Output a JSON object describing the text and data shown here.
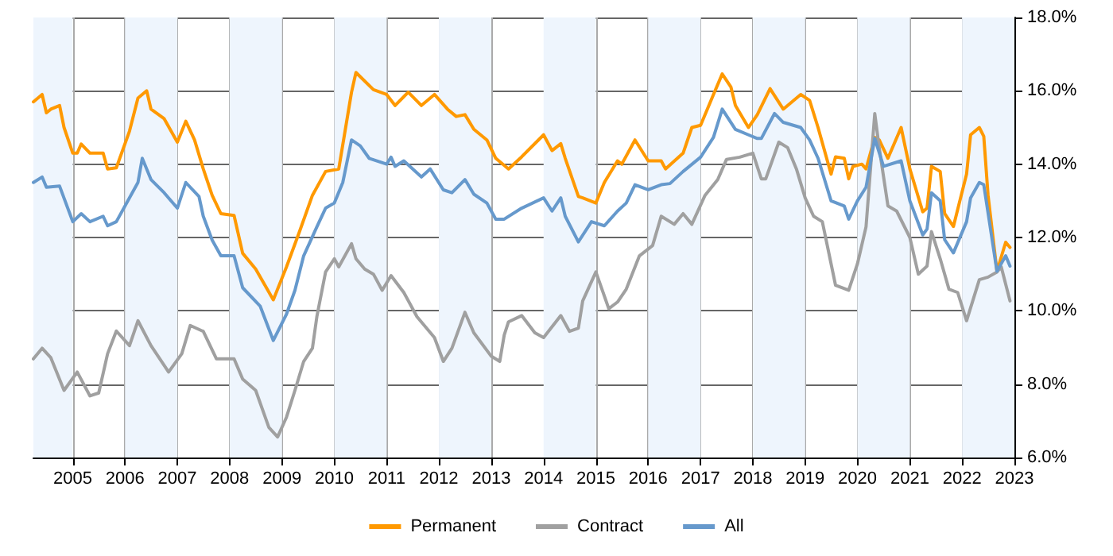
{
  "chart_data": {
    "type": "line",
    "marker": "none",
    "line_style": "solid",
    "grid": true,
    "legend": "bottom",
    "xlim": [
      "2004-04",
      "2023-01"
    ],
    "xticks": [
      {
        "value": "2005",
        "label": "2005"
      },
      {
        "value": "2006",
        "label": "2006"
      },
      {
        "value": "2007",
        "label": "2007"
      },
      {
        "value": "2008",
        "label": "2008"
      },
      {
        "value": "2009",
        "label": "2009"
      },
      {
        "value": "2010",
        "label": "2010"
      },
      {
        "value": "2011",
        "label": "2011"
      },
      {
        "value": "2012",
        "label": "2012"
      },
      {
        "value": "2013",
        "label": "2013"
      },
      {
        "value": "2014",
        "label": "2014"
      },
      {
        "value": "2015",
        "label": "2015"
      },
      {
        "value": "2016",
        "label": "2016"
      },
      {
        "value": "2017",
        "label": "2017"
      },
      {
        "value": "2018",
        "label": "2018"
      },
      {
        "value": "2019",
        "label": "2019"
      },
      {
        "value": "2020",
        "label": "2020"
      },
      {
        "value": "2021",
        "label": "2021"
      },
      {
        "value": "2022",
        "label": "2022"
      },
      {
        "value": "2023",
        "label": "2023"
      }
    ],
    "ylim": [
      6,
      18
    ],
    "yticks": [
      {
        "value": 6,
        "label": "6.0%"
      },
      {
        "value": 8,
        "label": "8.0%"
      },
      {
        "value": 10,
        "label": "10.0%"
      },
      {
        "value": 12,
        "label": "12.0%"
      },
      {
        "value": 14,
        "label": "14.0%"
      },
      {
        "value": 16,
        "label": "16.0%"
      },
      {
        "value": 18,
        "label": "18.0%"
      }
    ],
    "bands": [
      {
        "axis": "x",
        "from": "2004-04",
        "to": "2005",
        "color": "#eef5fd"
      },
      {
        "axis": "x",
        "from": "2006",
        "to": "2007",
        "color": "#eef5fd"
      },
      {
        "axis": "x",
        "from": "2008",
        "to": "2009",
        "color": "#eef5fd"
      },
      {
        "axis": "x",
        "from": "2010",
        "to": "2011",
        "color": "#eef5fd"
      },
      {
        "axis": "x",
        "from": "2012",
        "to": "2013",
        "color": "#eef5fd"
      },
      {
        "axis": "x",
        "from": "2014",
        "to": "2015",
        "color": "#eef5fd"
      },
      {
        "axis": "x",
        "from": "2016",
        "to": "2017",
        "color": "#eef5fd"
      },
      {
        "axis": "x",
        "from": "2018",
        "to": "2019",
        "color": "#eef5fd"
      },
      {
        "axis": "x",
        "from": "2020",
        "to": "2021",
        "color": "#eef5fd"
      },
      {
        "axis": "x",
        "from": "2022",
        "to": "2023",
        "color": "#eef5fd"
      }
    ],
    "series": [
      {
        "name": "Permanent",
        "color": "#ff9900",
        "x": [
          "2004-04",
          "2004-06",
          "2004-07",
          "2004-08",
          "2004-10",
          "2004-11",
          "2005-01",
          "2005-02",
          "2005-03",
          "2005-05",
          "2005-08",
          "2005-09",
          "2005-11",
          "2006-02",
          "2006-04",
          "2006-06",
          "2006-07",
          "2006-10",
          "2007-01",
          "2007-03",
          "2007-05",
          "2007-07",
          "2007-09",
          "2007-11",
          "2008-02",
          "2008-04",
          "2008-07",
          "2008-11",
          "2009-02",
          "2009-05",
          "2009-08",
          "2009-11",
          "2010-02",
          "2010-05",
          "2010-06",
          "2010-10",
          "2011-01",
          "2011-03",
          "2011-06",
          "2011-09",
          "2011-12",
          "2012-03",
          "2012-05",
          "2012-07",
          "2012-09",
          "2012-12",
          "2013-02",
          "2013-05",
          "2013-08",
          "2014-01",
          "2014-03",
          "2014-05",
          "2014-06",
          "2014-09",
          "2014-10",
          "2015-01",
          "2015-03",
          "2015-06",
          "2015-07",
          "2015-10",
          "2016-01",
          "2016-04",
          "2016-05",
          "2016-09",
          "2016-11",
          "2017-01",
          "2017-04",
          "2017-06",
          "2017-08",
          "2017-09",
          "2017-12",
          "2018-02",
          "2018-05",
          "2018-08",
          "2018-12",
          "2019-02",
          "2019-04",
          "2019-07",
          "2019-08",
          "2019-10",
          "2019-11",
          "2019-12",
          "2020-02",
          "2020-03",
          "2020-05",
          "2020-06",
          "2020-08",
          "2020-11",
          "2021-01",
          "2021-04",
          "2021-05",
          "2021-06",
          "2021-08",
          "2021-09",
          "2021-11",
          "2022-02",
          "2022-03",
          "2022-05",
          "2022-06",
          "2022-07",
          "2022-09",
          "2022-11",
          "2022-12"
        ],
        "values": [
          15.7,
          15.9,
          15.4,
          15.5,
          15.6,
          15.0,
          14.3,
          14.3,
          14.55,
          14.3,
          14.3,
          13.87,
          13.9,
          14.9,
          15.8,
          16.0,
          15.5,
          15.24,
          14.6,
          15.17,
          14.66,
          13.87,
          13.15,
          12.65,
          12.6,
          11.57,
          11.14,
          10.3,
          11.2,
          12.14,
          13.15,
          13.8,
          13.87,
          15.96,
          16.5,
          16.03,
          15.9,
          15.6,
          15.96,
          15.6,
          15.9,
          15.5,
          15.3,
          15.35,
          14.95,
          14.66,
          14.16,
          13.87,
          14.2,
          14.8,
          14.37,
          14.56,
          14.16,
          13.12,
          13.08,
          12.94,
          13.5,
          14.09,
          14.0,
          14.66,
          14.09,
          14.09,
          13.87,
          14.3,
          15.0,
          15.06,
          15.9,
          16.46,
          16.1,
          15.6,
          15.0,
          15.35,
          16.06,
          15.5,
          15.9,
          15.74,
          15.0,
          13.73,
          14.2,
          14.16,
          13.6,
          13.94,
          14.0,
          13.87,
          14.73,
          14.66,
          14.16,
          15.0,
          13.87,
          12.7,
          12.8,
          13.94,
          13.8,
          12.65,
          12.3,
          13.73,
          14.8,
          15.0,
          14.76,
          13.15,
          11.08,
          11.87,
          11.73
        ]
      },
      {
        "name": "Contract",
        "color": "#a0a0a0",
        "x": [
          "2004-04",
          "2004-06",
          "2004-08",
          "2004-11",
          "2005-02",
          "2005-05",
          "2005-07",
          "2005-09",
          "2005-11",
          "2006-02",
          "2006-04",
          "2006-07",
          "2006-11",
          "2007-02",
          "2007-04",
          "2007-07",
          "2007-10",
          "2008-02",
          "2008-04",
          "2008-07",
          "2008-10",
          "2008-12",
          "2009-02",
          "2009-04",
          "2009-06",
          "2009-08",
          "2009-09",
          "2009-11",
          "2010-01",
          "2010-02",
          "2010-05",
          "2010-06",
          "2010-08",
          "2010-10",
          "2010-12",
          "2011-02",
          "2011-05",
          "2011-08",
          "2011-12",
          "2012-02",
          "2012-04",
          "2012-07",
          "2012-09",
          "2013-01",
          "2013-03",
          "2013-04",
          "2013-05",
          "2013-08",
          "2013-11",
          "2014-01",
          "2014-05",
          "2014-07",
          "2014-09",
          "2014-10",
          "2015-01",
          "2015-04",
          "2015-06",
          "2015-08",
          "2015-11",
          "2016-02",
          "2016-04",
          "2016-07",
          "2016-09",
          "2016-11",
          "2017-02",
          "2017-05",
          "2017-07",
          "2017-10",
          "2018-01",
          "2018-03",
          "2018-04",
          "2018-07",
          "2018-09",
          "2018-11",
          "2019-01",
          "2019-03",
          "2019-05",
          "2019-08",
          "2019-11",
          "2020-01",
          "2020-03",
          "2020-05",
          "2020-06",
          "2020-08",
          "2020-10",
          "2021-01",
          "2021-03",
          "2021-05",
          "2021-06",
          "2021-08",
          "2021-10",
          "2021-12",
          "2022-02",
          "2022-05",
          "2022-07",
          "2022-09",
          "2022-10",
          "2022-12"
        ],
        "values": [
          8.69,
          8.98,
          8.72,
          7.83,
          8.33,
          7.68,
          7.76,
          8.83,
          9.45,
          9.05,
          9.73,
          9.05,
          8.33,
          8.83,
          9.6,
          9.44,
          8.69,
          8.69,
          8.14,
          7.83,
          6.82,
          6.56,
          7.1,
          7.83,
          8.62,
          8.98,
          9.84,
          11.06,
          11.42,
          11.2,
          11.83,
          11.42,
          11.14,
          11.0,
          10.56,
          10.96,
          10.5,
          9.84,
          9.27,
          8.62,
          8.98,
          9.96,
          9.4,
          8.76,
          8.62,
          9.34,
          9.7,
          9.87,
          9.4,
          9.27,
          9.87,
          9.44,
          9.53,
          10.27,
          11.06,
          10.06,
          10.24,
          10.59,
          11.5,
          11.78,
          12.58,
          12.36,
          12.65,
          12.36,
          13.15,
          13.58,
          14.13,
          14.19,
          14.3,
          13.6,
          13.6,
          14.6,
          14.45,
          13.87,
          13.08,
          12.58,
          12.43,
          10.7,
          10.56,
          11.28,
          12.29,
          15.38,
          14.45,
          12.86,
          12.72,
          12.0,
          11.0,
          11.22,
          12.16,
          11.42,
          10.59,
          10.5,
          9.73,
          10.85,
          10.92,
          11.06,
          11.2,
          10.27
        ]
      },
      {
        "name": "All",
        "color": "#6699cc",
        "x": [
          "2004-04",
          "2004-06",
          "2004-07",
          "2004-10",
          "2005-01",
          "2005-03",
          "2005-05",
          "2005-08",
          "2005-09",
          "2005-11",
          "2006-04",
          "2006-05",
          "2006-07",
          "2006-10",
          "2007-01",
          "2007-03",
          "2007-06",
          "2007-07",
          "2007-09",
          "2007-11",
          "2008-02",
          "2008-04",
          "2008-08",
          "2008-11",
          "2009-02",
          "2009-04",
          "2009-06",
          "2009-09",
          "2009-11",
          "2010-01",
          "2010-03",
          "2010-05",
          "2010-07",
          "2010-09",
          "2011-01",
          "2011-02",
          "2011-03",
          "2011-05",
          "2011-09",
          "2011-11",
          "2012-02",
          "2012-04",
          "2012-07",
          "2012-09",
          "2012-12",
          "2013-02",
          "2013-04",
          "2013-08",
          "2014-01",
          "2014-03",
          "2014-05",
          "2014-06",
          "2014-09",
          "2014-12",
          "2015-03",
          "2015-06",
          "2015-08",
          "2015-10",
          "2016-01",
          "2016-04",
          "2016-06",
          "2016-09",
          "2017-01",
          "2017-04",
          "2017-06",
          "2017-09",
          "2017-12",
          "2018-02",
          "2018-03",
          "2018-06",
          "2018-08",
          "2018-12",
          "2019-02",
          "2019-04",
          "2019-07",
          "2019-10",
          "2019-11",
          "2020-01",
          "2020-03",
          "2020-05",
          "2020-07",
          "2020-11",
          "2021-01",
          "2021-04",
          "2021-05",
          "2021-06",
          "2021-08",
          "2021-09",
          "2021-11",
          "2022-02",
          "2022-03",
          "2022-05",
          "2022-06",
          "2022-09",
          "2022-11",
          "2022-12"
        ],
        "values": [
          13.5,
          13.65,
          13.37,
          13.4,
          12.43,
          12.65,
          12.43,
          12.58,
          12.32,
          12.43,
          13.5,
          14.16,
          13.58,
          13.22,
          12.8,
          13.5,
          13.12,
          12.58,
          11.93,
          11.5,
          11.5,
          10.63,
          10.13,
          9.19,
          9.91,
          10.56,
          11.5,
          12.29,
          12.8,
          12.94,
          13.5,
          14.66,
          14.5,
          14.16,
          14.0,
          14.19,
          13.94,
          14.09,
          13.65,
          13.87,
          13.3,
          13.22,
          13.58,
          13.18,
          12.94,
          12.5,
          12.5,
          12.8,
          13.08,
          12.72,
          13.08,
          12.58,
          11.88,
          12.43,
          12.32,
          12.72,
          12.94,
          13.44,
          13.3,
          13.44,
          13.47,
          13.8,
          14.19,
          14.73,
          15.5,
          14.95,
          14.8,
          14.7,
          14.7,
          15.38,
          15.14,
          15.0,
          14.66,
          14.16,
          13.0,
          12.86,
          12.5,
          13.0,
          13.37,
          14.7,
          13.94,
          14.09,
          13.0,
          12.07,
          12.23,
          13.22,
          13.0,
          11.94,
          11.58,
          12.43,
          13.08,
          13.5,
          13.44,
          11.08,
          11.5,
          11.22
        ]
      }
    ]
  }
}
